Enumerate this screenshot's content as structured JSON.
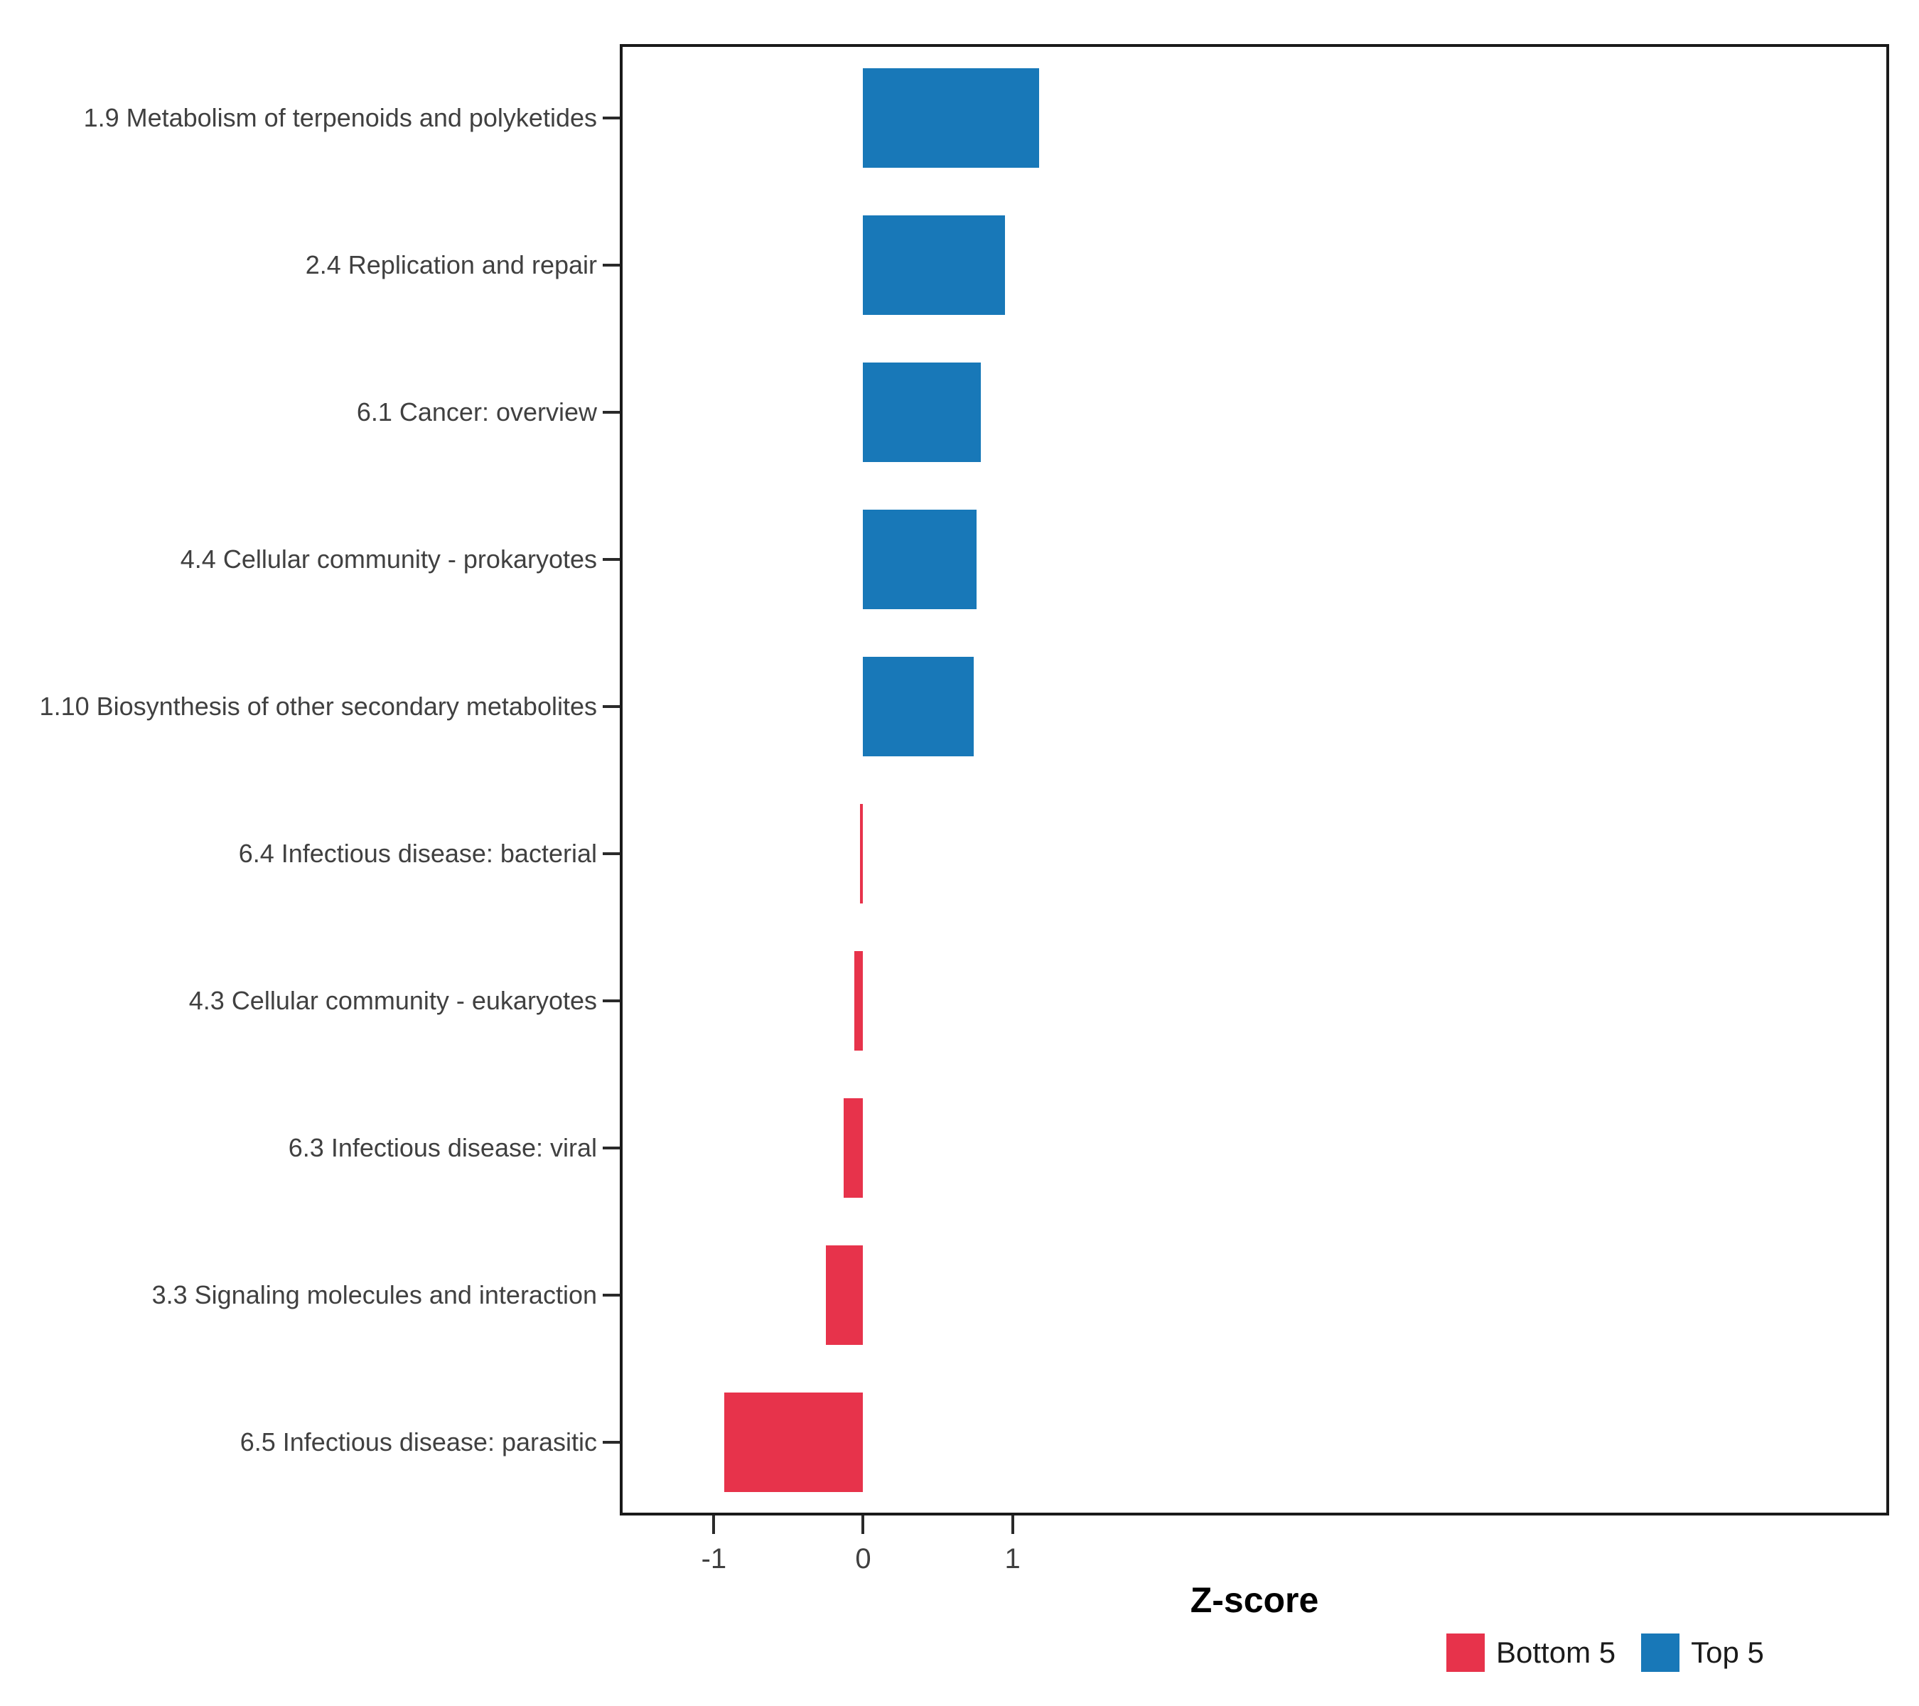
{
  "chart_data": {
    "type": "bar",
    "orientation": "horizontal",
    "title": "",
    "xlabel": "Z-score",
    "ylabel": "",
    "x_ticks": [
      "-1",
      "0",
      "1"
    ],
    "x_tick_values": [
      -1,
      0,
      1
    ],
    "xlim": [
      -1.63,
      6.87
    ],
    "grid": false,
    "panel_background": "#FFFFFF",
    "bars": [
      {
        "category": "1.9 Metabolism of terpenoids and polyketides",
        "value": 1.18,
        "group": "Top 5"
      },
      {
        "category": "2.4 Replication and repair",
        "value": 0.95,
        "group": "Top 5"
      },
      {
        "category": "6.1 Cancer: overview",
        "value": 0.79,
        "group": "Top 5"
      },
      {
        "category": "4.4 Cellular community - prokaryotes",
        "value": 0.76,
        "group": "Top 5"
      },
      {
        "category": "1.10 Biosynthesis of other secondary metabolites",
        "value": 0.74,
        "group": "Top 5"
      },
      {
        "category": "6.4 Infectious disease: bacterial",
        "value": -0.02,
        "group": "Bottom 5"
      },
      {
        "category": "4.3 Cellular community - eukaryotes",
        "value": -0.06,
        "group": "Bottom 5"
      },
      {
        "category": "6.3 Infectious disease: viral",
        "value": -0.13,
        "group": "Bottom 5"
      },
      {
        "category": "3.3 Signaling molecules and interaction",
        "value": -0.25,
        "group": "Bottom 5"
      },
      {
        "category": "6.5 Infectious disease: parasitic",
        "value": -0.93,
        "group": "Bottom 5"
      }
    ],
    "colors": {
      "Bottom 5": "#E7334B",
      "Top 5": "#1878B8"
    },
    "legend": {
      "position": "bottom",
      "items": [
        {
          "label": "Bottom 5",
          "color": "#E7334B"
        },
        {
          "label": "Top 5",
          "color": "#1878B8"
        }
      ]
    }
  }
}
